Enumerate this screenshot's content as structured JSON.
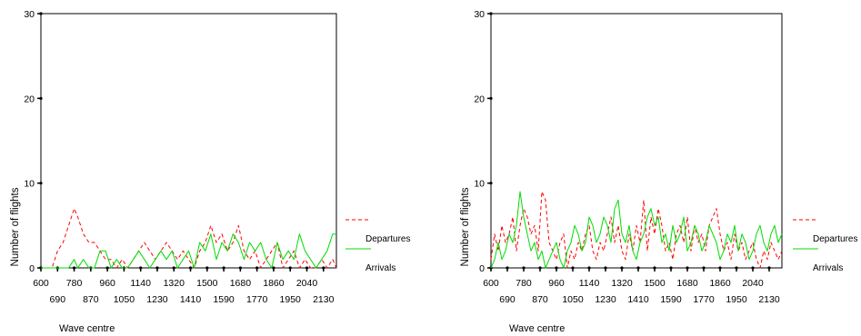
{
  "chart_data": [
    {
      "type": "line",
      "xlabel": "Wave centre",
      "ylabel": "Number of flights",
      "xlim": [
        600,
        2200
      ],
      "ylim": [
        0,
        30
      ],
      "yticks": [
        0,
        10,
        20,
        30
      ],
      "xticks_row1": [
        600,
        780,
        960,
        1140,
        1320,
        1500,
        1680,
        1860,
        2040
      ],
      "xticks_row2": [
        690,
        870,
        1050,
        1230,
        1410,
        1590,
        1770,
        1950,
        2130
      ],
      "legend_position": "right",
      "series": [
        {
          "name": "Departures",
          "color": "#ff0000",
          "style": "dashed",
          "x": [
            600,
            630,
            660,
            690,
            720,
            750,
            780,
            800,
            830,
            860,
            890,
            920,
            950,
            980,
            1010,
            1040,
            1070,
            1100,
            1130,
            1160,
            1190,
            1220,
            1250,
            1280,
            1310,
            1340,
            1370,
            1400,
            1430,
            1460,
            1490,
            1520,
            1550,
            1580,
            1610,
            1640,
            1670,
            1700,
            1730,
            1760,
            1790,
            1820,
            1850,
            1880,
            1910,
            1940,
            1970,
            2000,
            2030,
            2060,
            2090,
            2120,
            2150,
            2180,
            2200
          ],
          "y": [
            0,
            0,
            0,
            2,
            3,
            5,
            7,
            6,
            4,
            3,
            3,
            2,
            1,
            1,
            0,
            1,
            0,
            1,
            2,
            3,
            2,
            1,
            2,
            3,
            2,
            1,
            2,
            1,
            0,
            2,
            3,
            5,
            3,
            4,
            2,
            3,
            5,
            2,
            1,
            2,
            0,
            1,
            2,
            3,
            0,
            1,
            2,
            0,
            1,
            0,
            0,
            1,
            0,
            1,
            0
          ]
        },
        {
          "name": "Arrivals",
          "color": "#00dd00",
          "style": "solid",
          "x": [
            600,
            650,
            700,
            750,
            780,
            800,
            830,
            860,
            890,
            920,
            950,
            980,
            1010,
            1040,
            1070,
            1100,
            1130,
            1160,
            1190,
            1220,
            1250,
            1280,
            1310,
            1340,
            1370,
            1400,
            1430,
            1460,
            1490,
            1520,
            1550,
            1580,
            1610,
            1640,
            1670,
            1700,
            1730,
            1760,
            1790,
            1820,
            1850,
            1880,
            1910,
            1940,
            1970,
            2000,
            2030,
            2060,
            2090,
            2120,
            2150,
            2180,
            2200
          ],
          "y": [
            0,
            0,
            0,
            0,
            1,
            0,
            1,
            0,
            0,
            2,
            2,
            0,
            1,
            0,
            0,
            1,
            2,
            1,
            0,
            1,
            2,
            1,
            2,
            0,
            1,
            2,
            0,
            3,
            2,
            4,
            1,
            3,
            2,
            4,
            3,
            1,
            3,
            2,
            3,
            1,
            0,
            3,
            1,
            2,
            1,
            4,
            2,
            1,
            0,
            1,
            2,
            4,
            4
          ]
        }
      ]
    },
    {
      "type": "line",
      "xlabel": "Wave centre",
      "ylabel": "Number of flights",
      "xlim": [
        600,
        2200
      ],
      "ylim": [
        0,
        30
      ],
      "yticks": [
        0,
        10,
        20,
        30
      ],
      "xticks_row1": [
        600,
        780,
        960,
        1140,
        1320,
        1500,
        1680,
        1860,
        2040
      ],
      "xticks_row2": [
        690,
        870,
        1050,
        1230,
        1410,
        1590,
        1770,
        1950,
        2130
      ],
      "legend_position": "right",
      "series": [
        {
          "name": "Departures",
          "color": "#ff0000",
          "style": "dashed",
          "x": [
            600,
            620,
            640,
            660,
            680,
            700,
            720,
            740,
            760,
            780,
            800,
            820,
            840,
            860,
            880,
            900,
            920,
            940,
            960,
            980,
            1000,
            1020,
            1040,
            1060,
            1080,
            1100,
            1120,
            1140,
            1160,
            1180,
            1200,
            1220,
            1240,
            1260,
            1280,
            1300,
            1320,
            1340,
            1360,
            1380,
            1400,
            1420,
            1440,
            1460,
            1480,
            1500,
            1520,
            1540,
            1560,
            1580,
            1600,
            1620,
            1640,
            1660,
            1680,
            1700,
            1720,
            1740,
            1760,
            1780,
            1800,
            1820,
            1840,
            1860,
            1880,
            1900,
            1920,
            1940,
            1960,
            1980,
            2000,
            2020,
            2040,
            2060,
            2080,
            2100,
            2120,
            2140,
            2160,
            2180,
            2200
          ],
          "y": [
            1,
            4,
            2,
            5,
            3,
            4,
            6,
            2,
            5,
            7,
            6,
            4,
            5,
            2,
            9,
            8,
            3,
            2,
            1,
            3,
            4,
            0,
            2,
            1,
            3,
            2,
            4,
            5,
            2,
            1,
            3,
            2,
            4,
            6,
            3,
            5,
            2,
            1,
            4,
            2,
            5,
            3,
            8,
            2,
            6,
            4,
            7,
            5,
            2,
            3,
            1,
            4,
            5,
            3,
            6,
            2,
            5,
            3,
            4,
            2,
            5,
            6,
            7,
            4,
            2,
            3,
            1,
            4,
            2,
            3,
            1,
            2,
            3,
            1,
            0,
            2,
            1,
            3,
            2,
            1,
            2
          ]
        },
        {
          "name": "Arrivals",
          "color": "#00dd00",
          "style": "solid",
          "x": [
            600,
            620,
            640,
            660,
            680,
            700,
            720,
            740,
            760,
            780,
            800,
            820,
            840,
            860,
            880,
            900,
            920,
            940,
            960,
            980,
            1000,
            1020,
            1040,
            1060,
            1080,
            1100,
            1120,
            1140,
            1160,
            1180,
            1200,
            1220,
            1240,
            1260,
            1280,
            1300,
            1320,
            1340,
            1360,
            1380,
            1400,
            1420,
            1440,
            1460,
            1480,
            1500,
            1520,
            1540,
            1560,
            1580,
            1600,
            1620,
            1640,
            1660,
            1680,
            1700,
            1720,
            1740,
            1760,
            1780,
            1800,
            1820,
            1840,
            1860,
            1880,
            1900,
            1920,
            1940,
            1960,
            1980,
            2000,
            2020,
            2040,
            2060,
            2080,
            2100,
            2120,
            2140,
            2160,
            2180,
            2200
          ],
          "y": [
            0,
            1,
            3,
            1,
            2,
            4,
            3,
            5,
            9,
            6,
            4,
            2,
            3,
            1,
            2,
            0,
            1,
            2,
            3,
            1,
            0,
            2,
            3,
            5,
            4,
            2,
            3,
            6,
            5,
            3,
            4,
            6,
            5,
            3,
            7,
            8,
            4,
            3,
            5,
            2,
            1,
            3,
            4,
            6,
            7,
            5,
            6,
            3,
            4,
            2,
            5,
            3,
            4,
            6,
            2,
            3,
            5,
            4,
            2,
            3,
            5,
            4,
            3,
            1,
            2,
            4,
            3,
            5,
            2,
            4,
            3,
            1,
            2,
            4,
            5,
            3,
            2,
            4,
            5,
            3,
            4
          ]
        }
      ]
    }
  ]
}
